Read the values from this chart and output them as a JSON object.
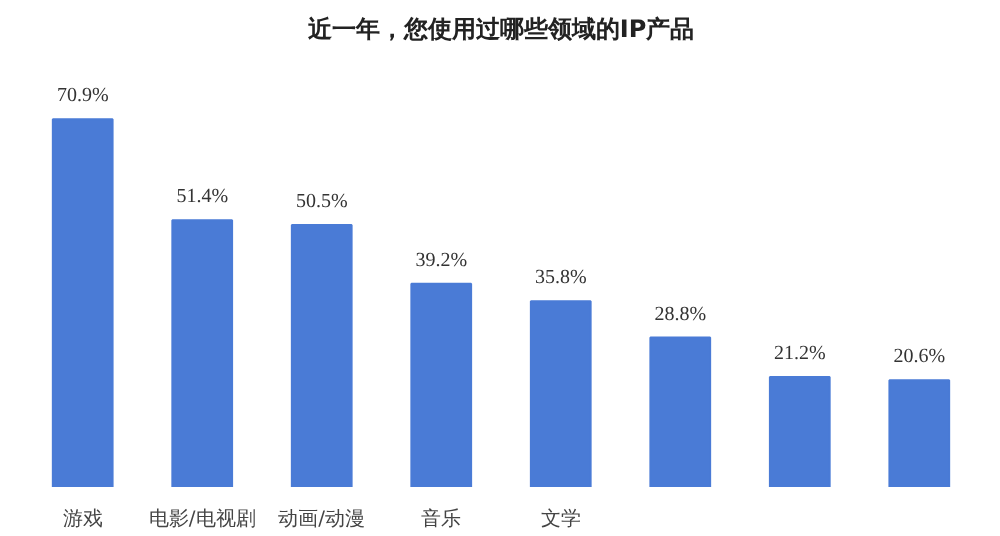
{
  "chart_data": {
    "type": "bar",
    "title": "近一年，您使用过哪些领域的IP产品",
    "categories": [
      "游戏",
      "电影/电视剧",
      "动画/动漫",
      "音乐",
      "文学",
      null,
      null,
      null
    ],
    "values": [
      70.9,
      51.4,
      50.5,
      39.2,
      35.8,
      28.8,
      21.2,
      20.6
    ],
    "value_labels": [
      "70.9%",
      "51.4%",
      "50.5%",
      "39.2%",
      "35.8%",
      "28.8%",
      "21.2%",
      "20.6%"
    ],
    "color": "#4a7bd6"
  }
}
